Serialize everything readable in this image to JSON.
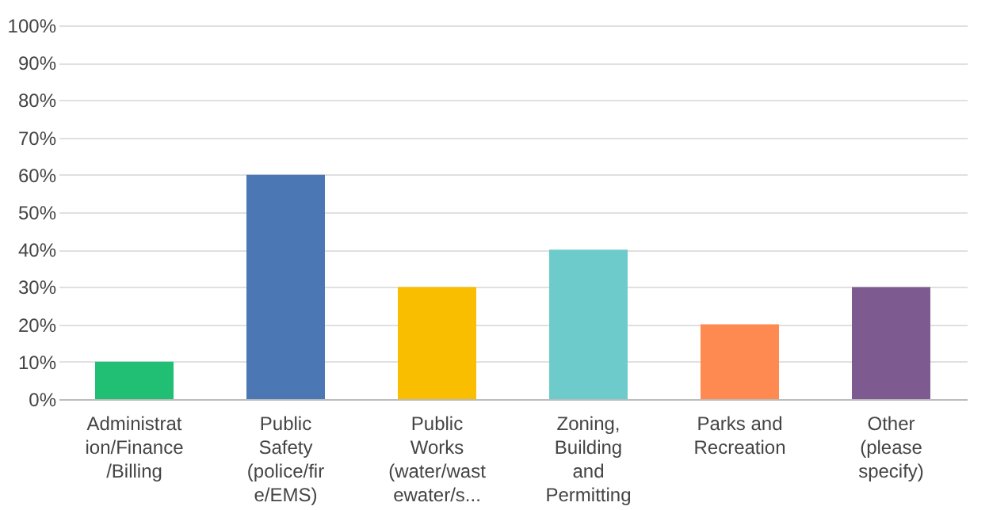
{
  "chart_data": {
    "type": "bar",
    "categories": [
      "Administration/Finance/Billing",
      "Public Safety (police/fire/EMS)",
      "Public Works (water/wastewater/s...",
      "Zoning, Building and Permitting",
      "Parks and Recreation",
      "Other (please specify)"
    ],
    "values": [
      10,
      60,
      30,
      40,
      20,
      30
    ],
    "colors": [
      "#21bf73",
      "#4b78b5",
      "#f9be00",
      "#6dcbcb",
      "#ff8a51",
      "#7d5b90"
    ],
    "ylim": [
      0,
      100
    ],
    "yticks": [
      {
        "value": 0,
        "label": "0%"
      },
      {
        "value": 10,
        "label": "10%"
      },
      {
        "value": 20,
        "label": "20%"
      },
      {
        "value": 30,
        "label": "30%"
      },
      {
        "value": 40,
        "label": "40%"
      },
      {
        "value": 50,
        "label": "50%"
      },
      {
        "value": 60,
        "label": "60%"
      },
      {
        "value": 70,
        "label": "70%"
      },
      {
        "value": 80,
        "label": "80%"
      },
      {
        "value": 90,
        "label": "90%"
      },
      {
        "value": 100,
        "label": "100%"
      }
    ],
    "grid": "y"
  }
}
